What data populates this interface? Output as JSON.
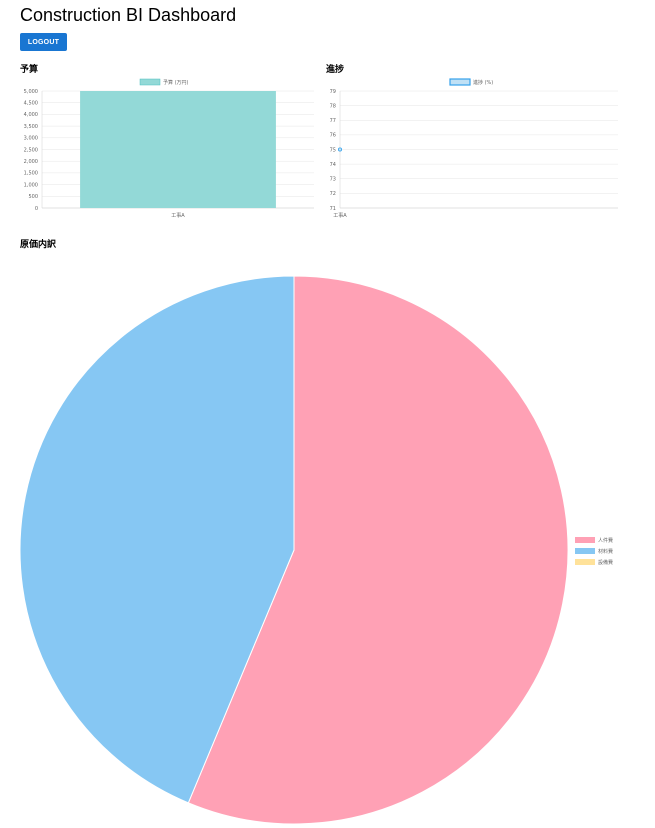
{
  "header": {
    "title": "Construction BI Dashboard",
    "logout_label": "LOGOUT"
  },
  "sections": {
    "budget_title": "予算",
    "progress_title": "進捗",
    "cost_title": "原価内訳"
  },
  "colors": {
    "button": "#1976d2",
    "budget_bar": "#93d9d7",
    "budget_bar_border": "#4bc0c0",
    "progress_line": "#36a2eb",
    "progress_fill": "#bfe0f5",
    "pie_labor": "#ffa1b5",
    "pie_material": "#86c7f3",
    "pie_equipment": "#ffe29a",
    "grid": "#e6e6e6",
    "axis_text": "#666666"
  },
  "chart_data": [
    {
      "id": "budget",
      "type": "bar",
      "categories": [
        "工事A"
      ],
      "series": [
        {
          "name": "予算 (万円)",
          "values": [
            5000
          ]
        }
      ],
      "ylim": [
        0,
        5000
      ],
      "yticks": [
        "0",
        "500",
        "1,000",
        "1,500",
        "2,000",
        "2,500",
        "3,000",
        "3,500",
        "4,000",
        "4,500",
        "5,000"
      ],
      "legend": "top",
      "grid": true
    },
    {
      "id": "progress",
      "type": "line",
      "categories": [
        "工事A"
      ],
      "series": [
        {
          "name": "進捗 (%)",
          "values": [
            75
          ]
        }
      ],
      "ylim": [
        71,
        79
      ],
      "yticks": [
        "71",
        "72",
        "73",
        "74",
        "75",
        "76",
        "77",
        "78",
        "79"
      ],
      "legend": "top",
      "grid": true
    },
    {
      "id": "cost",
      "type": "pie",
      "labels": [
        "人件費",
        "材料費",
        "設備費"
      ],
      "values": [
        56.3,
        43.7,
        0
      ],
      "legend": "right"
    }
  ]
}
